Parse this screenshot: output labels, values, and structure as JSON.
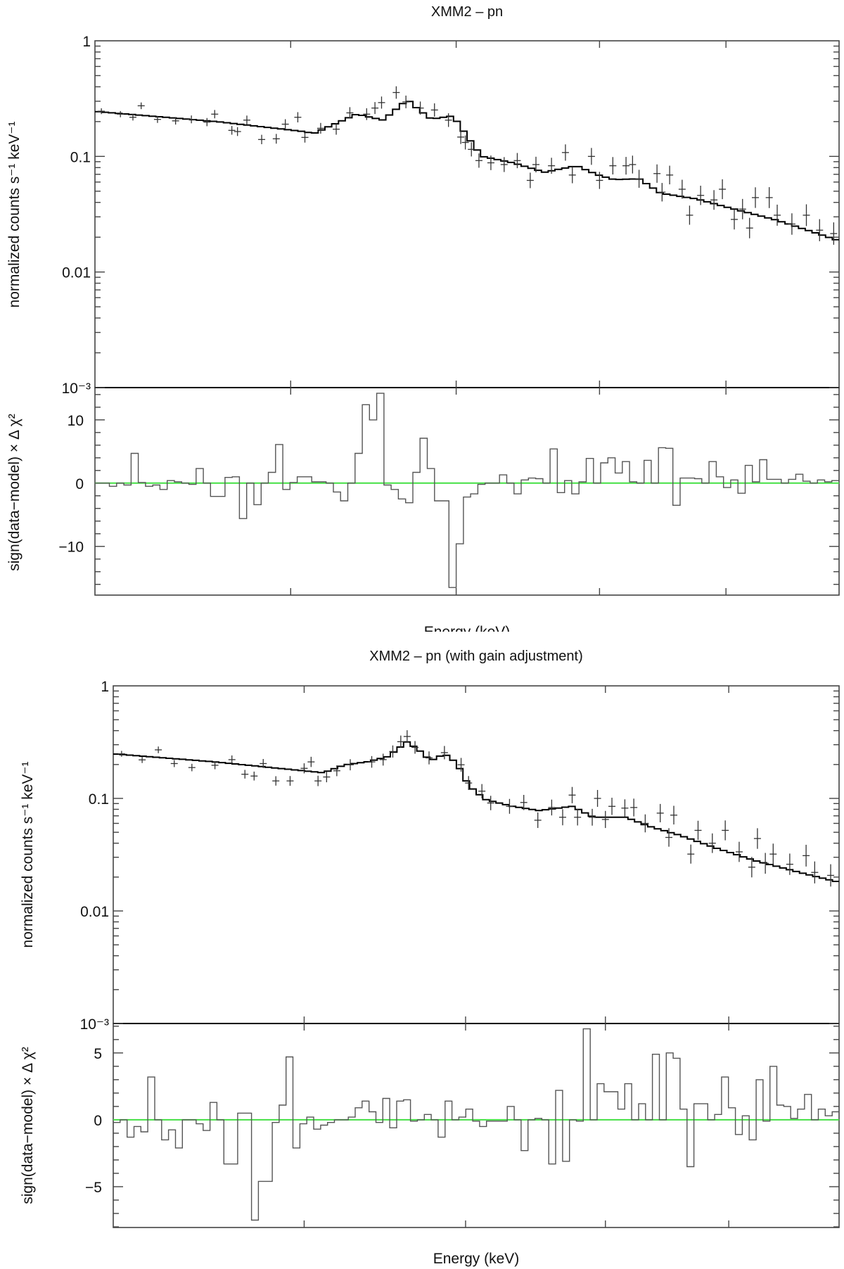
{
  "chart_data": [
    {
      "type": "line",
      "title": "XMM2 – pn",
      "xlabel": "Energy (keV)",
      "x_scale": "log",
      "xlim": [
        5.0,
        10.0
      ],
      "xticks": [
        6,
        7,
        8,
        9
      ],
      "xtick_labels_visible": false,
      "spectrum": {
        "ylabel": "normalized counts s⁻¹ keV⁻¹",
        "y_scale": "log",
        "ylim": [
          0.001,
          1
        ],
        "yticks": [
          0.001,
          0.01,
          0.1,
          1
        ],
        "ytick_labels": [
          "10⁻³",
          "0.01",
          "0.1",
          "1"
        ],
        "model_color": "#000000",
        "data_color": "#333333",
        "model": {
          "x": [
            5.0,
            5.6,
            6.06,
            6.13,
            6.38,
            6.54,
            6.69,
            6.75,
            6.84,
            6.98,
            7.09,
            7.17,
            7.38,
            7.6,
            7.83,
            7.99,
            8.11,
            8.3,
            8.47,
            8.75,
            9.07,
            9.44,
            9.77,
            10.0
          ],
          "y": [
            0.245,
            0.2,
            0.165,
            0.158,
            0.232,
            0.206,
            0.31,
            0.26,
            0.21,
            0.224,
            0.138,
            0.1,
            0.088,
            0.073,
            0.083,
            0.069,
            0.063,
            0.064,
            0.048,
            0.043,
            0.035,
            0.028,
            0.022,
            0.0186
          ]
        },
        "data": {
          "x": [
            5.03,
            5.12,
            5.18,
            5.22,
            5.3,
            5.39,
            5.47,
            5.55,
            5.59,
            5.68,
            5.71,
            5.76,
            5.84,
            5.92,
            5.97,
            6.04,
            6.08,
            6.17,
            6.26,
            6.34,
            6.44,
            6.49,
            6.53,
            6.62,
            6.68,
            6.77,
            6.86,
            6.95,
            7.03,
            7.06,
            7.1,
            7.15,
            7.23,
            7.32,
            7.41,
            7.5,
            7.54,
            7.65,
            7.75,
            7.8,
            7.94,
            8.0,
            8.1,
            8.2,
            8.25,
            8.3,
            8.44,
            8.48,
            8.54,
            8.64,
            8.7,
            8.79,
            8.9,
            8.97,
            9.07,
            9.14,
            9.2,
            9.25,
            9.37,
            9.44,
            9.57,
            9.7,
            9.82,
            9.95
          ],
          "y": [
            0.246,
            0.232,
            0.218,
            0.274,
            0.209,
            0.203,
            0.209,
            0.198,
            0.232,
            0.168,
            0.164,
            0.206,
            0.14,
            0.142,
            0.19,
            0.218,
            0.146,
            0.175,
            0.172,
            0.238,
            0.232,
            0.262,
            0.292,
            0.357,
            0.296,
            0.262,
            0.252,
            0.206,
            0.147,
            0.132,
            0.115,
            0.092,
            0.088,
            0.085,
            0.092,
            0.062,
            0.085,
            0.083,
            0.108,
            0.069,
            0.1,
            0.062,
            0.083,
            0.083,
            0.085,
            0.064,
            0.071,
            0.049,
            0.069,
            0.052,
            0.031,
            0.046,
            0.042,
            0.052,
            0.0285,
            0.035,
            0.024,
            0.044,
            0.044,
            0.031,
            0.026,
            0.031,
            0.023,
            0.0215
          ]
        }
      },
      "residuals": {
        "ylabel": "sign(data−model) × Δ χ²",
        "ylim": [
          -17.7,
          15.1
        ],
        "yticks": [
          -10,
          0,
          10
        ],
        "ytick_labels": [
          "−10",
          "0",
          "10"
        ],
        "minor_step": 2,
        "histogram_color": "#555555",
        "zero_line_color": "#44e044",
        "values": [
          0,
          0,
          -0.5,
          0,
          -0.3,
          4.7,
          0.1,
          -0.5,
          -0.3,
          -1.0,
          0.4,
          0.2,
          0,
          -0.2,
          2.3,
          0,
          -2.1,
          -2.1,
          0.9,
          1.0,
          -5.6,
          0,
          -3.4,
          0,
          1.7,
          6.1,
          -1.0,
          0.1,
          1.0,
          1.0,
          0.2,
          0.2,
          0,
          -1.4,
          -2.8,
          0,
          4.7,
          12.4,
          10.0,
          14.2,
          -0.3,
          -1.0,
          -2.5,
          -3.1,
          1.7,
          7.1,
          2.3,
          -2.8,
          -2.8,
          -16.5,
          -9.6,
          -2.2,
          -1.7,
          -0.2,
          0,
          0,
          1.3,
          0,
          -1.7,
          0.5,
          0.8,
          0.7,
          0,
          5.4,
          -1.5,
          0.4,
          -1.7,
          0.2,
          3.9,
          0,
          3.2,
          4.0,
          1.6,
          3.4,
          0.2,
          0,
          3.6,
          0,
          5.6,
          5.5,
          -3.5,
          0.8,
          0.8,
          0.7,
          0,
          3.4,
          1.0,
          -0.7,
          0.5,
          -1.6,
          2.8,
          0.2,
          3.7,
          0.6,
          0.6,
          0,
          0.6,
          1.4,
          0.3,
          0,
          0.5,
          0.2,
          0.4
        ]
      }
    },
    {
      "type": "line",
      "title": "XMM2 – pn (with gain adjustment)",
      "xlabel": "Energy (keV)",
      "x_scale": "log",
      "xlim": [
        5.0,
        10.0
      ],
      "xticks": [
        6,
        7,
        8,
        9
      ],
      "xtick_labels_visible": false,
      "spectrum": {
        "ylabel": "normalized counts s⁻¹ keV⁻¹",
        "y_scale": "log",
        "ylim": [
          0.001,
          1
        ],
        "yticks": [
          0.001,
          0.01,
          0.1,
          1
        ],
        "ytick_labels": [
          "10⁻³",
          "0.01",
          "0.1",
          "1"
        ],
        "model_color": "#000000",
        "data_color": "#333333",
        "model": {
          "x": [
            5.0,
            5.51,
            6.11,
            6.24,
            6.37,
            6.5,
            6.62,
            6.7,
            6.77,
            6.86,
            6.94,
            7.02,
            7.13,
            7.32,
            7.51,
            7.75,
            7.91,
            8.16,
            8.33,
            8.59,
            8.9,
            9.23,
            9.71,
            10.0
          ],
          "y": [
            0.249,
            0.211,
            0.169,
            0.199,
            0.211,
            0.235,
            0.319,
            0.265,
            0.216,
            0.249,
            0.207,
            0.131,
            0.098,
            0.085,
            0.078,
            0.085,
            0.068,
            0.068,
            0.057,
            0.047,
            0.036,
            0.028,
            0.021,
            0.018
          ]
        },
        "data": {
          "x": [
            5.04,
            5.14,
            5.22,
            5.3,
            5.39,
            5.51,
            5.6,
            5.67,
            5.72,
            5.77,
            5.84,
            5.92,
            6.0,
            6.04,
            6.08,
            6.13,
            6.19,
            6.27,
            6.4,
            6.47,
            6.53,
            6.58,
            6.62,
            6.67,
            6.76,
            6.86,
            6.97,
            7.02,
            7.11,
            7.17,
            7.3,
            7.4,
            7.5,
            7.6,
            7.68,
            7.75,
            7.79,
            7.9,
            7.94,
            8.0,
            8.05,
            8.15,
            8.22,
            8.31,
            8.43,
            8.5,
            8.54,
            8.68,
            8.74,
            8.86,
            8.97,
            9.09,
            9.2,
            9.25,
            9.32,
            9.39,
            9.54,
            9.69,
            9.77,
            9.92
          ],
          "y": [
            0.249,
            0.22,
            0.27,
            0.204,
            0.188,
            0.197,
            0.221,
            0.164,
            0.158,
            0.204,
            0.143,
            0.143,
            0.185,
            0.211,
            0.143,
            0.155,
            0.176,
            0.199,
            0.211,
            0.221,
            0.261,
            0.319,
            0.355,
            0.284,
            0.229,
            0.255,
            0.199,
            0.137,
            0.116,
            0.091,
            0.085,
            0.092,
            0.064,
            0.083,
            0.068,
            0.107,
            0.068,
            0.068,
            0.1,
            0.065,
            0.085,
            0.082,
            0.083,
            0.06,
            0.074,
            0.045,
            0.071,
            0.032,
            0.052,
            0.04,
            0.052,
            0.0335,
            0.0245,
            0.044,
            0.0265,
            0.032,
            0.026,
            0.031,
            0.022,
            0.0207
          ]
        }
      },
      "residuals": {
        "ylabel": "sign(data−model) × Δ χ²",
        "ylim": [
          -8.05,
          7.2
        ],
        "yticks": [
          -5,
          0,
          5
        ],
        "ytick_labels": [
          "−5",
          "0",
          "5"
        ],
        "minor_step": 1,
        "histogram_color": "#555555",
        "zero_line_color": "#44e044",
        "values": [
          -0.2,
          0,
          -1.3,
          -0.5,
          -0.9,
          3.2,
          0,
          -1.5,
          -0.75,
          -2.1,
          0,
          0,
          -0.3,
          -0.8,
          1.3,
          0,
          -3.3,
          -3.3,
          0.5,
          0.5,
          -7.5,
          -4.6,
          -4.6,
          -0.2,
          1.1,
          4.7,
          -2.1,
          -0.3,
          0.2,
          -0.7,
          -0.4,
          -0.2,
          0,
          0,
          0.2,
          0.9,
          1.4,
          0.6,
          -0.2,
          1.6,
          -0.6,
          1.4,
          1.5,
          -0.1,
          0,
          0.4,
          0,
          -1.3,
          1.4,
          0,
          0.2,
          0.8,
          -0.1,
          -0.5,
          -0.1,
          -0.1,
          -0.1,
          1.0,
          0,
          -2.3,
          0,
          0.1,
          0,
          -3.3,
          2.2,
          -3.1,
          0,
          -0.1,
          6.8,
          0,
          2.7,
          2.1,
          2.1,
          0.8,
          2.7,
          0,
          1.2,
          0,
          4.9,
          0,
          5.0,
          4.6,
          0.8,
          -3.5,
          1.2,
          1.2,
          0,
          0.4,
          3.2,
          0.9,
          -1.1,
          0.3,
          -1.5,
          3.0,
          -0.1,
          4.0,
          1.1,
          1.0,
          0.1,
          0.8,
          1.9,
          0,
          0.8,
          0.3,
          0.6
        ]
      }
    }
  ]
}
